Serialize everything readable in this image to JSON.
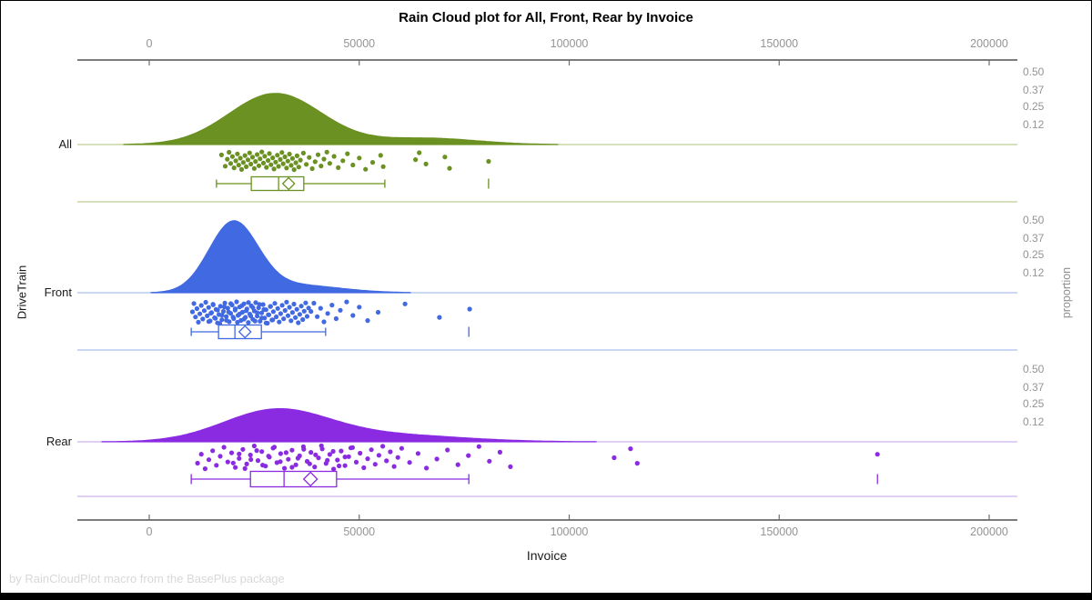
{
  "title": "Rain Cloud plot for All, Front, Rear by Invoice",
  "footnote": "by RainCloudPlot macro from the BasePlus package",
  "x_axis": {
    "label": "Invoice",
    "min": 0,
    "max": 200000,
    "ticks": [
      0,
      50000,
      100000,
      150000,
      200000
    ],
    "tick_labels": [
      "0",
      "50000",
      "100000",
      "150000",
      "200000"
    ]
  },
  "left_axis": {
    "label": "DriveTrain",
    "categories": [
      "All",
      "Front",
      "Rear"
    ]
  },
  "right_axis": {
    "label": "proportion",
    "tick_values": [
      0.5,
      0.37,
      0.25,
      0.12
    ],
    "tick_labels": [
      "0.50",
      "0.37",
      "0.25",
      "0.12"
    ]
  },
  "styles": {
    "axis_line_color": "#2e2e2e",
    "tick_color": "#6e6e6e",
    "tick_label_color": "#949494",
    "text_color": "#1a1a1a",
    "footnote_color": "#d8d8d8",
    "frame_color": "#000000",
    "box_fill": "#ffffff"
  },
  "chart_data": {
    "type": "raincloud",
    "x_field": "Invoice",
    "group_field": "DriveTrain",
    "x_range": [
      0,
      200000
    ],
    "proportion_ticks": [
      0.5,
      0.37,
      0.25,
      0.12
    ],
    "groups": [
      {
        "name": "All",
        "color": "#6A9121",
        "light_color": "#C9D5A4",
        "density": {
          "peak_proportion": 0.345,
          "components": [
            {
              "mean": 30000,
              "sd": 11000,
              "weight": 0.88
            },
            {
              "mean": 66000,
              "sd": 12000,
              "weight": 0.12
            }
          ]
        },
        "box": {
          "whisker_low": 16000,
          "q1": 24300,
          "median": 30800,
          "mean": 33200,
          "q3": 36800,
          "whisker_high": 56100,
          "outliers": [
            80800
          ]
        },
        "rain": [
          17200,
          18100,
          18600,
          19000,
          19400,
          19800,
          20200,
          20600,
          21000,
          21300,
          21700,
          22000,
          22400,
          22800,
          23100,
          23500,
          23900,
          24200,
          24600,
          25000,
          25300,
          25700,
          26100,
          26400,
          26800,
          27200,
          27500,
          27900,
          28300,
          28600,
          29000,
          29400,
          29700,
          30100,
          30500,
          30800,
          31200,
          31600,
          31900,
          32300,
          32700,
          33000,
          33400,
          33800,
          34100,
          34500,
          34900,
          35200,
          35600,
          36000,
          36700,
          37400,
          38100,
          38800,
          39500,
          40200,
          40900,
          41600,
          42300,
          43000,
          44000,
          45000,
          46100,
          47200,
          48500,
          50000,
          51500,
          53200,
          55100,
          55700,
          63400,
          64300,
          65900,
          70400,
          71500,
          80800
        ]
      },
      {
        "name": "Front",
        "color": "#4169E1",
        "light_color": "#BACBF0",
        "density": {
          "peak_proportion": 0.495,
          "components": [
            {
              "mean": 20000,
              "sd": 5800,
              "weight": 0.82
            },
            {
              "mean": 34000,
              "sd": 11000,
              "weight": 0.18
            }
          ]
        },
        "box": {
          "whisker_low": 10000,
          "q1": 16500,
          "median": 20400,
          "mean": 22800,
          "q3": 26700,
          "whisker_high": 42000,
          "outliers": [
            76100
          ]
        },
        "rain": [
          10300,
          10650,
          11000,
          11350,
          11700,
          12050,
          12400,
          12750,
          13100,
          13450,
          13800,
          14150,
          14500,
          14850,
          15200,
          15550,
          15900,
          16250,
          16600,
          16950,
          17300,
          17650,
          18000,
          18350,
          18700,
          19050,
          19400,
          19750,
          20100,
          20450,
          20800,
          21150,
          21500,
          21850,
          22200,
          22550,
          22900,
          23250,
          23600,
          23950,
          24300,
          24650,
          25000,
          25350,
          25700,
          26050,
          26400,
          26750,
          27100,
          27450,
          27800,
          28150,
          28500,
          28850,
          29200,
          29550,
          29900,
          30250,
          30600,
          30950,
          31300,
          31650,
          32000,
          32350,
          32700,
          33050,
          33400,
          33750,
          34100,
          34450,
          34800,
          35150,
          35500,
          35850,
          36200,
          36550,
          36900,
          37250,
          37600,
          37950,
          14175,
          14700,
          15225,
          15750,
          16275,
          16800,
          17325,
          17850,
          18375,
          18900,
          19425,
          19950,
          20475,
          21000,
          21525,
          22050,
          22575,
          23100,
          23625,
          24150,
          24675,
          25200,
          25725,
          26250,
          26775,
          27300,
          27825,
          28350,
          28875,
          29400,
          38500,
          39200,
          40000,
          40800,
          41600,
          42500,
          43500,
          44500,
          45500,
          47000,
          48500,
          50000,
          52000,
          54500,
          60900,
          69100,
          76300
        ]
      },
      {
        "name": "Rear",
        "color": "#8A2BE2",
        "light_color": "#D8BFF4",
        "density": {
          "peak_proportion": 0.215,
          "components": [
            {
              "mean": 30000,
              "sd": 12500,
              "weight": 0.75
            },
            {
              "mean": 56000,
              "sd": 18000,
              "weight": 0.25
            }
          ]
        },
        "box": {
          "whisker_low": 10000,
          "q1": 24100,
          "median": 32100,
          "mean": 38400,
          "q3": 44600,
          "whisker_high": 76100,
          "outliers": [
            173400
          ]
        },
        "rain": [
          11500,
          12400,
          13300,
          14200,
          15100,
          16000,
          16900,
          17800,
          18700,
          19600,
          20500,
          21400,
          22300,
          23200,
          24100,
          25000,
          25900,
          26800,
          27700,
          28600,
          29500,
          30400,
          31300,
          32200,
          33100,
          34000,
          34900,
          35800,
          36700,
          37600,
          38500,
          39400,
          40300,
          41200,
          42100,
          43000,
          43900,
          44800,
          45700,
          46600,
          47500,
          48400,
          49300,
          50200,
          51100,
          52000,
          52900,
          53800,
          54700,
          55600,
          56500,
          57400,
          58300,
          59200,
          60100,
          20000,
          21400,
          22800,
          24200,
          25600,
          27000,
          28400,
          29800,
          31200,
          32600,
          34000,
          35400,
          36800,
          38200,
          39600,
          41000,
          42400,
          43800,
          45200,
          46600,
          48000,
          62000,
          64000,
          66000,
          68500,
          71000,
          73500,
          76000,
          78500,
          81000,
          83500,
          86000,
          110700,
          114600,
          116200,
          173400
        ]
      }
    ]
  }
}
